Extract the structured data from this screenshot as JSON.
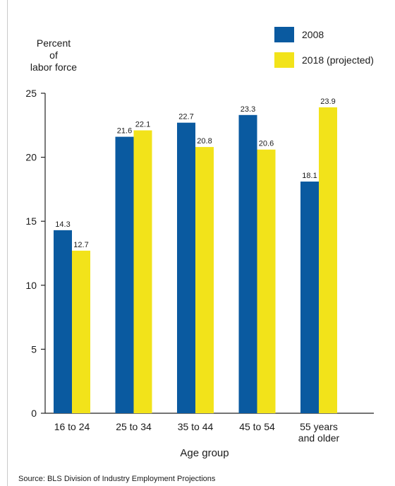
{
  "chart_data": {
    "type": "bar",
    "ylabel": [
      "Percent",
      "of",
      "labor force"
    ],
    "xlabel": "Age group",
    "categories": [
      [
        "16 to 24"
      ],
      [
        "25 to 34"
      ],
      [
        "35 to 44"
      ],
      [
        "45 to 54"
      ],
      [
        "55 years",
        "and older"
      ]
    ],
    "series": [
      {
        "name": "2008",
        "values": [
          14.3,
          21.6,
          22.7,
          23.3,
          18.1
        ],
        "color": "#0a5aa0"
      },
      {
        "name": "2018 (projected)",
        "values": [
          12.7,
          22.1,
          20.8,
          20.6,
          23.9
        ],
        "color": "#f2e31a"
      }
    ],
    "ylim": [
      0,
      25
    ],
    "yticks": [
      0,
      5,
      10,
      15,
      20,
      25
    ],
    "legend_position": "top-right",
    "grid": false,
    "source": "Source: BLS Division of Industry Employment Projections"
  }
}
